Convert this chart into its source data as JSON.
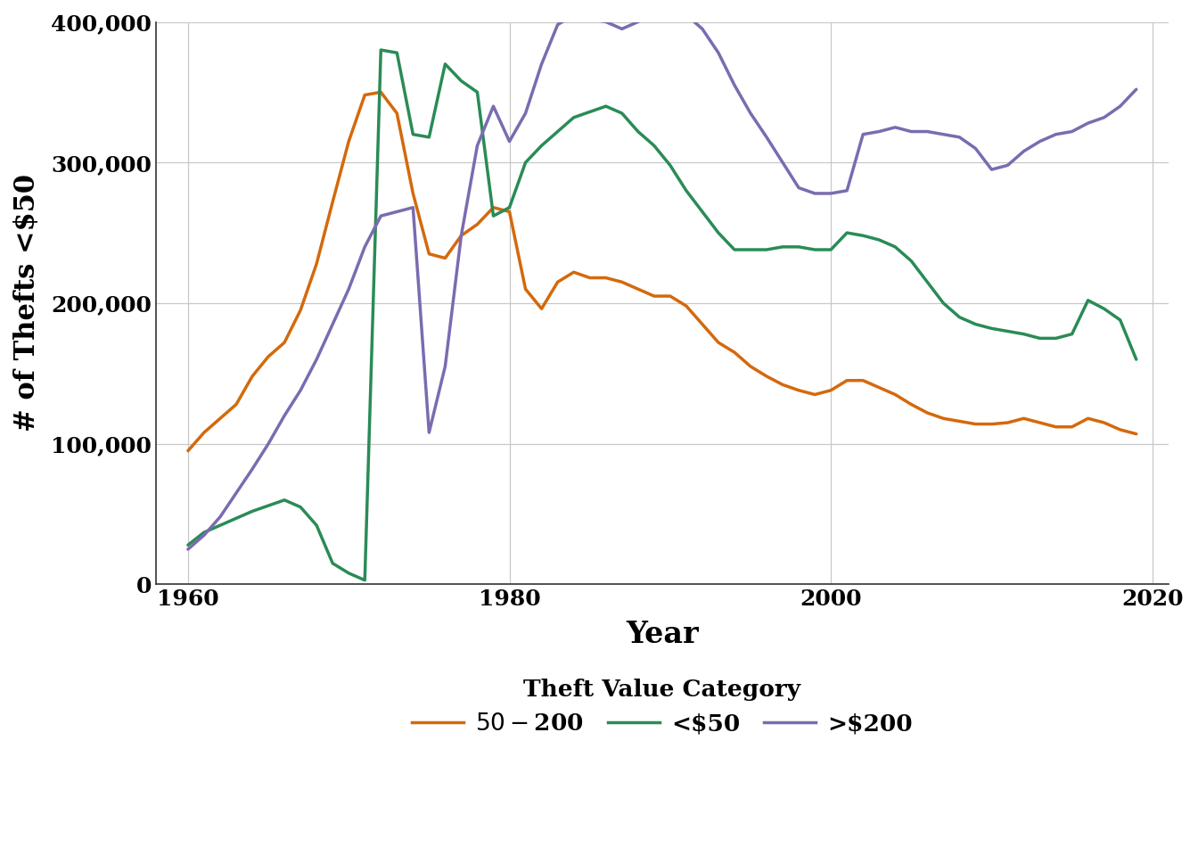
{
  "title": "",
  "ylabel": "# of Thefts <$50",
  "xlabel": "Year",
  "legend_title": "Theft Value Category",
  "legend_labels": [
    "$50-$200",
    "<$50",
    ">$200"
  ],
  "line_colors": [
    "#d4690c",
    "#2a8b57",
    "#7b6bb0"
  ],
  "line_width": 2.5,
  "ylim": [
    0,
    400000
  ],
  "yticks": [
    0,
    100000,
    200000,
    300000,
    400000
  ],
  "xlim": [
    1958,
    2021
  ],
  "xticks": [
    1960,
    1980,
    2000,
    2020
  ],
  "background_color": "#ffffff",
  "grid_color": "#c8c8c8",
  "years": [
    1960,
    1961,
    1962,
    1963,
    1964,
    1965,
    1966,
    1967,
    1968,
    1969,
    1970,
    1971,
    1972,
    1973,
    1974,
    1975,
    1976,
    1977,
    1978,
    1979,
    1980,
    1981,
    1982,
    1983,
    1984,
    1985,
    1986,
    1987,
    1988,
    1989,
    1990,
    1991,
    1992,
    1993,
    1994,
    1995,
    1996,
    1997,
    1998,
    1999,
    2000,
    2001,
    2002,
    2003,
    2004,
    2005,
    2006,
    2007,
    2008,
    2009,
    2010,
    2011,
    2012,
    2013,
    2014,
    2015,
    2016,
    2017,
    2018,
    2019
  ],
  "series_50_200": [
    95000,
    108000,
    118000,
    128000,
    148000,
    162000,
    172000,
    195000,
    228000,
    272000,
    315000,
    348000,
    350000,
    335000,
    278000,
    235000,
    232000,
    248000,
    256000,
    268000,
    265000,
    210000,
    196000,
    215000,
    222000,
    218000,
    218000,
    215000,
    210000,
    205000,
    205000,
    198000,
    185000,
    172000,
    165000,
    155000,
    148000,
    142000,
    138000,
    135000,
    138000,
    145000,
    145000,
    140000,
    135000,
    128000,
    122000,
    118000,
    116000,
    114000,
    114000,
    115000,
    118000,
    115000,
    112000,
    112000,
    118000,
    115000,
    110000,
    107000
  ],
  "series_lt_50": [
    28000,
    37000,
    42000,
    47000,
    52000,
    56000,
    60000,
    55000,
    42000,
    15000,
    8000,
    3000,
    380000,
    378000,
    320000,
    318000,
    370000,
    358000,
    350000,
    262000,
    268000,
    300000,
    312000,
    322000,
    332000,
    336000,
    340000,
    335000,
    322000,
    312000,
    298000,
    280000,
    265000,
    250000,
    238000,
    238000,
    238000,
    240000,
    240000,
    238000,
    238000,
    250000,
    248000,
    245000,
    240000,
    230000,
    215000,
    200000,
    190000,
    185000,
    182000,
    180000,
    178000,
    175000,
    175000,
    178000,
    202000,
    196000,
    188000,
    160000
  ],
  "series_gt_200": [
    25000,
    35000,
    48000,
    65000,
    82000,
    100000,
    120000,
    138000,
    160000,
    185000,
    210000,
    240000,
    262000,
    265000,
    268000,
    108000,
    155000,
    248000,
    312000,
    340000,
    315000,
    335000,
    370000,
    398000,
    405000,
    402000,
    400000,
    395000,
    400000,
    408000,
    410000,
    405000,
    395000,
    378000,
    355000,
    335000,
    318000,
    300000,
    282000,
    278000,
    278000,
    280000,
    320000,
    322000,
    325000,
    322000,
    322000,
    320000,
    318000,
    310000,
    295000,
    298000,
    308000,
    315000,
    320000,
    322000,
    328000,
    332000,
    340000,
    352000
  ]
}
